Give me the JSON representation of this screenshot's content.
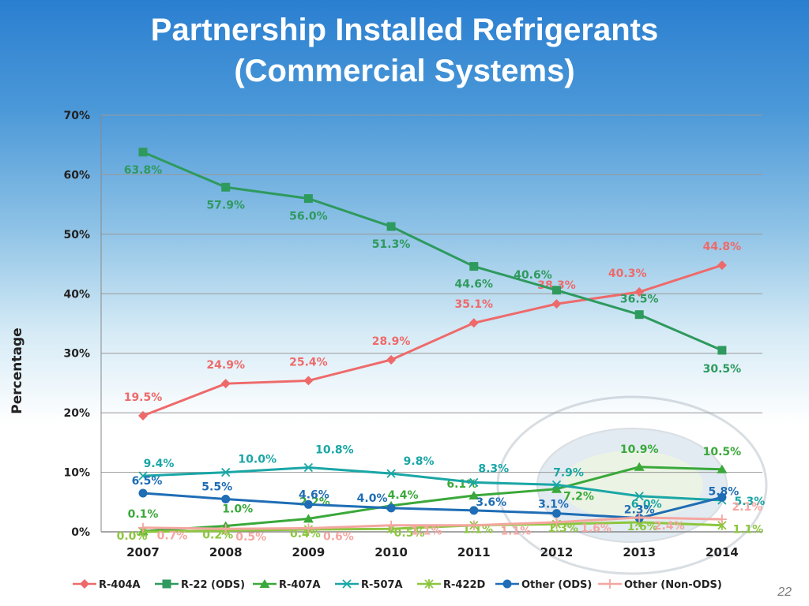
{
  "page_number": "22",
  "chart_data": {
    "type": "line",
    "title": "Partnership Installed Refrigerants (Commercial Systems)",
    "title_lines": [
      "Partnership Installed Refrigerants",
      "(Commercial Systems)"
    ],
    "xlabel": "",
    "ylabel": "Percentage",
    "ylim": [
      0,
      70
    ],
    "yticks": [
      "0%",
      "10%",
      "20%",
      "30%",
      "40%",
      "50%",
      "60%",
      "70%"
    ],
    "categories": [
      "2007",
      "2008",
      "2009",
      "2010",
      "2011",
      "2012",
      "2013",
      "2014"
    ],
    "grid": true,
    "legend_position": "bottom",
    "series": [
      {
        "name": "R-404A",
        "color": "#ee6a6a",
        "marker": "diamond",
        "values": [
          19.5,
          24.9,
          25.4,
          28.9,
          35.1,
          38.3,
          40.3,
          44.8
        ],
        "labels": [
          "19.5%",
          "24.9%",
          "25.4%",
          "28.9%",
          "35.1%",
          "38.3%",
          "40.3%",
          "44.8%"
        ]
      },
      {
        "name": "R-22 (ODS)",
        "color": "#2e9a5e",
        "marker": "square",
        "values": [
          63.8,
          57.9,
          56.0,
          51.3,
          44.6,
          40.6,
          36.5,
          30.5
        ],
        "labels": [
          "63.8%",
          "57.9%",
          "56.0%",
          "51.3%",
          "44.6%",
          "40.6%",
          "36.5%",
          "30.5%"
        ]
      },
      {
        "name": "R-407A",
        "color": "#3aa83a",
        "marker": "triangle",
        "values": [
          0.1,
          1.0,
          2.2,
          4.4,
          6.1,
          7.2,
          10.9,
          10.5
        ],
        "labels": [
          "0.1%",
          "1.0%",
          "2.2%",
          "4.4%",
          "6.1%",
          "7.2%",
          "10.9%",
          "10.5%"
        ]
      },
      {
        "name": "R-507A",
        "color": "#1aa6a6",
        "marker": "x",
        "values": [
          9.4,
          10.0,
          10.8,
          9.8,
          8.3,
          7.9,
          6.0,
          5.3
        ],
        "labels": [
          "9.4%",
          "10.0%",
          "10.8%",
          "9.8%",
          "8.3%",
          "7.9%",
          "6.0%",
          "5.3%"
        ]
      },
      {
        "name": "R-422D",
        "color": "#8cc63f",
        "marker": "star",
        "values": [
          0.0,
          0.2,
          0.4,
          0.5,
          1.1,
          1.3,
          1.6,
          1.1
        ],
        "labels": [
          "0.0%",
          "0.2%",
          "0.4%",
          "0.5%",
          "1.1%",
          "1.3%",
          "1.6%",
          "1.1%"
        ]
      },
      {
        "name": "Other (ODS)",
        "color": "#1f6db5",
        "marker": "circle",
        "values": [
          6.5,
          5.5,
          4.6,
          4.0,
          3.6,
          3.1,
          2.3,
          5.8
        ],
        "labels": [
          "6.5%",
          "5.5%",
          "4.6%",
          "4.0%",
          "3.6%",
          "3.1%",
          "2.3%",
          "5.8%"
        ]
      },
      {
        "name": "Other (Non-ODS)",
        "color": "#f4a6a0",
        "marker": "plus",
        "values": [
          0.7,
          0.5,
          0.6,
          1.1,
          1.1,
          1.6,
          2.4,
          2.1
        ],
        "labels": [
          "0.7%",
          "0.5%",
          "0.6%",
          "1.1%",
          "1.1%",
          "1.6%",
          "2.4%",
          "2.1%"
        ]
      }
    ]
  }
}
